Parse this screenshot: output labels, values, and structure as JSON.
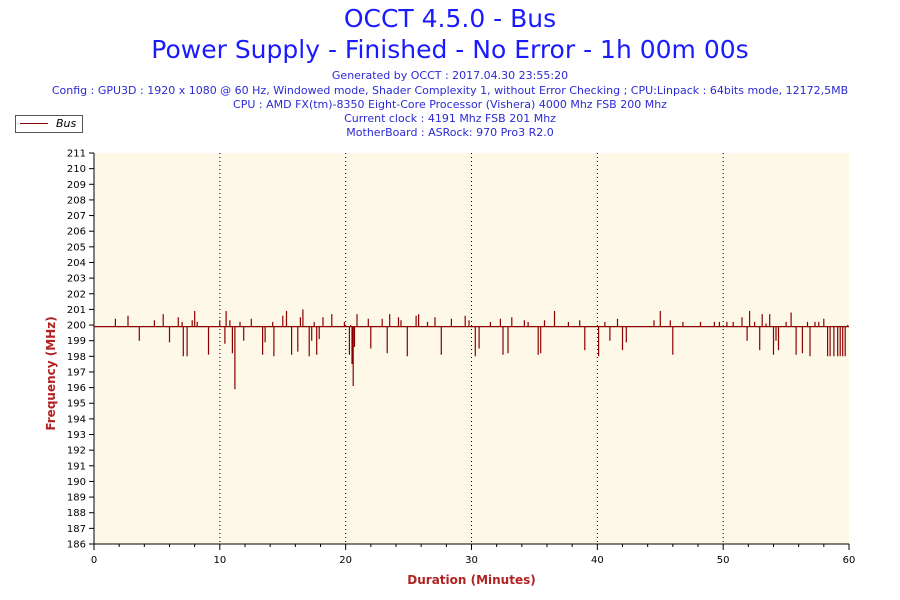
{
  "chart_data": {
    "type": "line",
    "title": "OCCT 4.5.0 - Bus",
    "subtitle": "Power Supply - Finished - No Error - 1h 00m 00s",
    "info_lines": [
      "Generated by OCCT : 2017.04.30 23:55:20",
      "Config : GPU3D : 1920 x 1080 @ 60 Hz, Windowed mode, Shader Complexity 1, without Error Checking ; CPU:Linpack : 64bits mode, 12172,5MB",
      "CPU : AMD FX(tm)-8350 Eight-Core Processor (Vishera) 4000 Mhz FSB 200 Mhz",
      "Current clock : 4191 Mhz FSB 201 Mhz",
      "MotherBoard : ASRock: 970 Pro3 R2.0"
    ],
    "xlabel": "Duration (Minutes)",
    "ylabel": "Frequency (MHz)",
    "xlim": [
      0,
      60
    ],
    "ylim": [
      186,
      211
    ],
    "x_ticks": [
      0,
      10,
      20,
      30,
      40,
      50,
      60
    ],
    "y_ticks": [
      186,
      187,
      188,
      189,
      190,
      191,
      192,
      193,
      194,
      195,
      196,
      197,
      198,
      199,
      200,
      201,
      202,
      203,
      204,
      205,
      206,
      207,
      208,
      209,
      210,
      211
    ],
    "grid": {
      "x": true,
      "y": false
    },
    "legend_position": "top-left",
    "colors": {
      "series": "#8b0000",
      "plot_bg": "#fdf8e8",
      "title": "#1a1aff",
      "axis_label": "#b22222"
    },
    "series": [
      {
        "name": "Bus",
        "baseline": 199.9,
        "spikes": [
          [
            1.7,
            200.4
          ],
          [
            2.7,
            200.6
          ],
          [
            3.6,
            199.0
          ],
          [
            4.8,
            200.3
          ],
          [
            5.5,
            200.7
          ],
          [
            6.0,
            198.9
          ],
          [
            6.7,
            200.5
          ],
          [
            7.0,
            200.2
          ],
          [
            7.1,
            198.0
          ],
          [
            7.4,
            198.0
          ],
          [
            7.8,
            200.3
          ],
          [
            8.0,
            200.9
          ],
          [
            8.2,
            200.2
          ],
          [
            9.1,
            198.1
          ],
          [
            10.0,
            200.3
          ],
          [
            10.4,
            198.8
          ],
          [
            10.5,
            200.9
          ],
          [
            10.8,
            200.3
          ],
          [
            11.0,
            198.2
          ],
          [
            11.2,
            195.9
          ],
          [
            11.6,
            200.2
          ],
          [
            11.9,
            199.0
          ],
          [
            12.5,
            200.4
          ],
          [
            13.4,
            198.1
          ],
          [
            13.6,
            198.9
          ],
          [
            14.2,
            200.2
          ],
          [
            14.3,
            198.0
          ],
          [
            15.0,
            200.6
          ],
          [
            15.3,
            200.9
          ],
          [
            15.7,
            198.1
          ],
          [
            16.2,
            198.3
          ],
          [
            16.4,
            200.5
          ],
          [
            16.6,
            201.0
          ],
          [
            17.1,
            198.0
          ],
          [
            17.3,
            199.0
          ],
          [
            17.5,
            200.2
          ],
          [
            17.7,
            198.1
          ],
          [
            17.9,
            199.1
          ],
          [
            18.2,
            200.5
          ],
          [
            18.9,
            200.7
          ],
          [
            19.9,
            200.2
          ],
          [
            20.3,
            198.1
          ],
          [
            20.4,
            200.0
          ],
          [
            20.5,
            197.5
          ],
          [
            20.6,
            196.1
          ],
          [
            20.7,
            198.6
          ],
          [
            20.9,
            200.7
          ],
          [
            21.8,
            200.4
          ],
          [
            22.0,
            198.5
          ],
          [
            22.9,
            200.4
          ],
          [
            23.3,
            198.2
          ],
          [
            23.5,
            200.7
          ],
          [
            24.2,
            200.5
          ],
          [
            24.4,
            200.3
          ],
          [
            24.9,
            198.0
          ],
          [
            25.6,
            200.6
          ],
          [
            25.8,
            200.7
          ],
          [
            26.5,
            200.2
          ],
          [
            27.1,
            200.5
          ],
          [
            27.6,
            198.1
          ],
          [
            28.4,
            200.4
          ],
          [
            29.5,
            200.6
          ],
          [
            29.8,
            200.3
          ],
          [
            30.3,
            198.0
          ],
          [
            30.6,
            198.5
          ],
          [
            31.5,
            200.2
          ],
          [
            32.3,
            200.4
          ],
          [
            32.5,
            198.1
          ],
          [
            32.9,
            198.2
          ],
          [
            33.2,
            200.5
          ],
          [
            34.2,
            200.3
          ],
          [
            34.5,
            200.2
          ],
          [
            35.3,
            198.1
          ],
          [
            35.5,
            198.2
          ],
          [
            35.8,
            200.3
          ],
          [
            36.6,
            200.9
          ],
          [
            37.7,
            200.2
          ],
          [
            38.6,
            200.3
          ],
          [
            39.0,
            198.4
          ],
          [
            40.1,
            198.0
          ],
          [
            40.6,
            200.2
          ],
          [
            41.0,
            199.0
          ],
          [
            41.6,
            200.4
          ],
          [
            42.0,
            198.4
          ],
          [
            42.3,
            198.9
          ],
          [
            44.5,
            200.3
          ],
          [
            45.0,
            200.9
          ],
          [
            45.8,
            200.3
          ],
          [
            46.0,
            198.1
          ],
          [
            46.8,
            200.2
          ],
          [
            48.2,
            200.2
          ],
          [
            49.3,
            200.2
          ],
          [
            49.7,
            200.2
          ],
          [
            50.3,
            200.2
          ],
          [
            50.8,
            200.2
          ],
          [
            51.5,
            200.5
          ],
          [
            51.9,
            199.0
          ],
          [
            52.1,
            200.9
          ],
          [
            52.5,
            200.2
          ],
          [
            52.9,
            198.4
          ],
          [
            53.1,
            200.7
          ],
          [
            53.4,
            200.1
          ],
          [
            53.7,
            200.7
          ],
          [
            54.0,
            198.1
          ],
          [
            54.2,
            199.0
          ],
          [
            54.4,
            198.4
          ],
          [
            55.0,
            200.2
          ],
          [
            55.4,
            200.8
          ],
          [
            55.8,
            198.1
          ],
          [
            56.3,
            198.2
          ],
          [
            56.7,
            200.2
          ],
          [
            56.9,
            198.0
          ],
          [
            57.3,
            200.2
          ],
          [
            57.6,
            200.2
          ],
          [
            58.0,
            200.4
          ],
          [
            58.3,
            198.0
          ],
          [
            58.5,
            198.0
          ],
          [
            58.8,
            198.0
          ],
          [
            59.1,
            198.0
          ],
          [
            59.3,
            198.0
          ],
          [
            59.5,
            198.0
          ],
          [
            59.7,
            198.0
          ],
          [
            59.9,
            200.0
          ]
        ]
      }
    ]
  }
}
